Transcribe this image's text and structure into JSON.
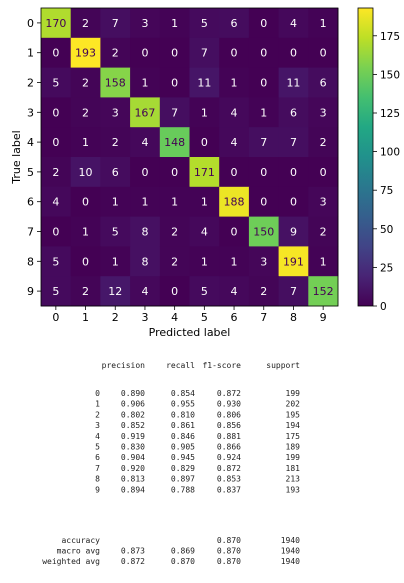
{
  "chart_data": [
    {
      "type": "heatmap",
      "xlabel": "Predicted label",
      "ylabel": "True label",
      "x_tick_labels": [
        "0",
        "1",
        "2",
        "3",
        "4",
        "5",
        "6",
        "7",
        "8",
        "9"
      ],
      "y_tick_labels": [
        "0",
        "1",
        "2",
        "3",
        "4",
        "5",
        "6",
        "7",
        "8",
        "9"
      ],
      "colormap": "viridis",
      "colorbar": {
        "min": 0,
        "max": 193,
        "ticks": [
          "0",
          "25",
          "50",
          "75",
          "100",
          "125",
          "150",
          "175"
        ]
      },
      "matrix": [
        [
          170,
          2,
          7,
          3,
          1,
          5,
          6,
          0,
          4,
          1
        ],
        [
          0,
          193,
          2,
          0,
          0,
          7,
          0,
          0,
          0,
          0
        ],
        [
          5,
          2,
          158,
          1,
          0,
          11,
          1,
          0,
          11,
          6
        ],
        [
          0,
          2,
          3,
          167,
          7,
          1,
          4,
          1,
          6,
          3
        ],
        [
          0,
          1,
          2,
          4,
          148,
          0,
          4,
          7,
          7,
          2
        ],
        [
          2,
          10,
          6,
          0,
          0,
          171,
          0,
          0,
          0,
          0
        ],
        [
          4,
          0,
          1,
          1,
          1,
          1,
          188,
          0,
          0,
          3
        ],
        [
          0,
          1,
          5,
          8,
          2,
          4,
          0,
          150,
          9,
          2
        ],
        [
          5,
          0,
          1,
          8,
          2,
          1,
          1,
          3,
          191,
          1
        ],
        [
          5,
          2,
          12,
          4,
          0,
          5,
          4,
          2,
          7,
          152
        ]
      ]
    },
    {
      "type": "table",
      "headers": [
        "precision",
        "recall",
        "f1-score",
        "support"
      ],
      "rows": [
        [
          "0",
          "0.890",
          "0.854",
          "0.872",
          "199"
        ],
        [
          "1",
          "0.906",
          "0.955",
          "0.930",
          "202"
        ],
        [
          "2",
          "0.802",
          "0.810",
          "0.806",
          "195"
        ],
        [
          "3",
          "0.852",
          "0.861",
          "0.856",
          "194"
        ],
        [
          "4",
          "0.919",
          "0.846",
          "0.881",
          "175"
        ],
        [
          "5",
          "0.830",
          "0.905",
          "0.866",
          "189"
        ],
        [
          "6",
          "0.904",
          "0.945",
          "0.924",
          "199"
        ],
        [
          "7",
          "0.920",
          "0.829",
          "0.872",
          "181"
        ],
        [
          "8",
          "0.813",
          "0.897",
          "0.853",
          "213"
        ],
        [
          "9",
          "0.894",
          "0.788",
          "0.837",
          "193"
        ]
      ],
      "summary_rows": [
        [
          "accuracy",
          "",
          "",
          "0.870",
          "1940"
        ],
        [
          "macro avg",
          "0.873",
          "0.869",
          "0.870",
          "1940"
        ],
        [
          "weighted avg",
          "0.872",
          "0.870",
          "0.870",
          "1940"
        ]
      ]
    }
  ]
}
